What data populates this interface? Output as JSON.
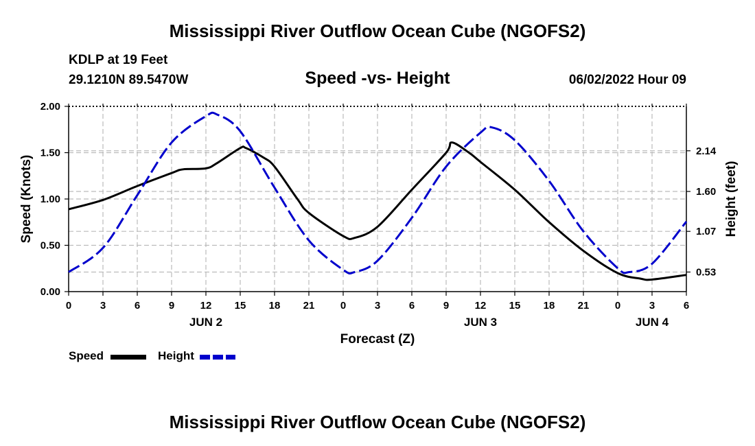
{
  "page": {
    "title_top": "Mississippi River Outflow Ocean Cube (NGOFS2)",
    "title_bottom": "Mississippi River Outflow Ocean Cube (NGOFS2)",
    "station": "KDLP at 19 Feet",
    "location": "29.1210N  89.5470W",
    "subtitle": "Speed -vs- Height",
    "date": "06/02/2022 Hour 09"
  },
  "legend": {
    "speed_label": "Speed",
    "height_label": "Height"
  },
  "colors": {
    "speed": "#000000",
    "height": "#0000cc",
    "grid": "#bbbbbb"
  },
  "chart_data": {
    "type": "line",
    "title": "Speed -vs- Height",
    "xlabel": "Forecast (Z)",
    "ylabel_left": "Speed (Knots)",
    "ylabel_right": "Height (feet)",
    "x_range_hours": [
      0,
      54
    ],
    "x_tick_hours": [
      0,
      3,
      6,
      9,
      12,
      15,
      18,
      21,
      24,
      27,
      30,
      33,
      36,
      39,
      42,
      45,
      48,
      51,
      54
    ],
    "x_tick_labels": [
      "0",
      "3",
      "6",
      "9",
      "12",
      "15",
      "18",
      "21",
      "0",
      "3",
      "6",
      "9",
      "12",
      "15",
      "18",
      "21",
      "0",
      "3",
      "6"
    ],
    "day_labels": [
      {
        "label": "JUN 2",
        "hour": 12
      },
      {
        "label": "JUN 3",
        "hour": 36
      },
      {
        "label": "JUN 4",
        "hour": 51
      }
    ],
    "y_left": {
      "range": [
        0,
        2.0
      ],
      "ticks": [
        0.0,
        0.5,
        1.0,
        1.5,
        2.0
      ],
      "tick_labels": [
        "0.00",
        "0.50",
        "1.00",
        "1.50",
        "2.00"
      ]
    },
    "y_right": {
      "range": [
        0.27,
        2.73
      ],
      "ticks": [
        0.53,
        1.07,
        1.6,
        2.14
      ],
      "tick_labels": [
        "0.53",
        "1.07",
        "1.60",
        "2.14"
      ]
    },
    "series": [
      {
        "name": "Speed",
        "axis": "left",
        "style": "solid",
        "x": [
          0,
          3,
          6,
          9,
          10,
          12,
          13,
          15,
          15.5,
          17,
          18,
          20,
          21,
          24,
          25,
          27,
          30,
          33,
          33.5,
          35,
          36,
          39,
          42,
          45,
          48,
          50,
          51,
          54
        ],
        "y": [
          0.89,
          0.99,
          1.14,
          1.28,
          1.32,
          1.33,
          1.39,
          1.55,
          1.55,
          1.45,
          1.35,
          1.0,
          0.85,
          0.6,
          0.58,
          0.7,
          1.1,
          1.5,
          1.61,
          1.5,
          1.4,
          1.1,
          0.75,
          0.44,
          0.2,
          0.14,
          0.13,
          0.18
        ]
      },
      {
        "name": "Height",
        "axis": "right",
        "style": "dashed",
        "x": [
          0,
          3,
          6,
          9,
          12,
          13,
          15,
          18,
          21,
          24,
          25,
          27,
          30,
          33,
          36,
          37,
          39,
          42,
          45,
          48,
          49,
          51,
          54
        ],
        "y": [
          0.53,
          0.85,
          1.55,
          2.25,
          2.6,
          2.62,
          2.4,
          1.65,
          0.95,
          0.56,
          0.53,
          0.68,
          1.25,
          1.93,
          2.38,
          2.45,
          2.28,
          1.74,
          1.07,
          0.58,
          0.53,
          0.64,
          1.2
        ]
      }
    ]
  }
}
